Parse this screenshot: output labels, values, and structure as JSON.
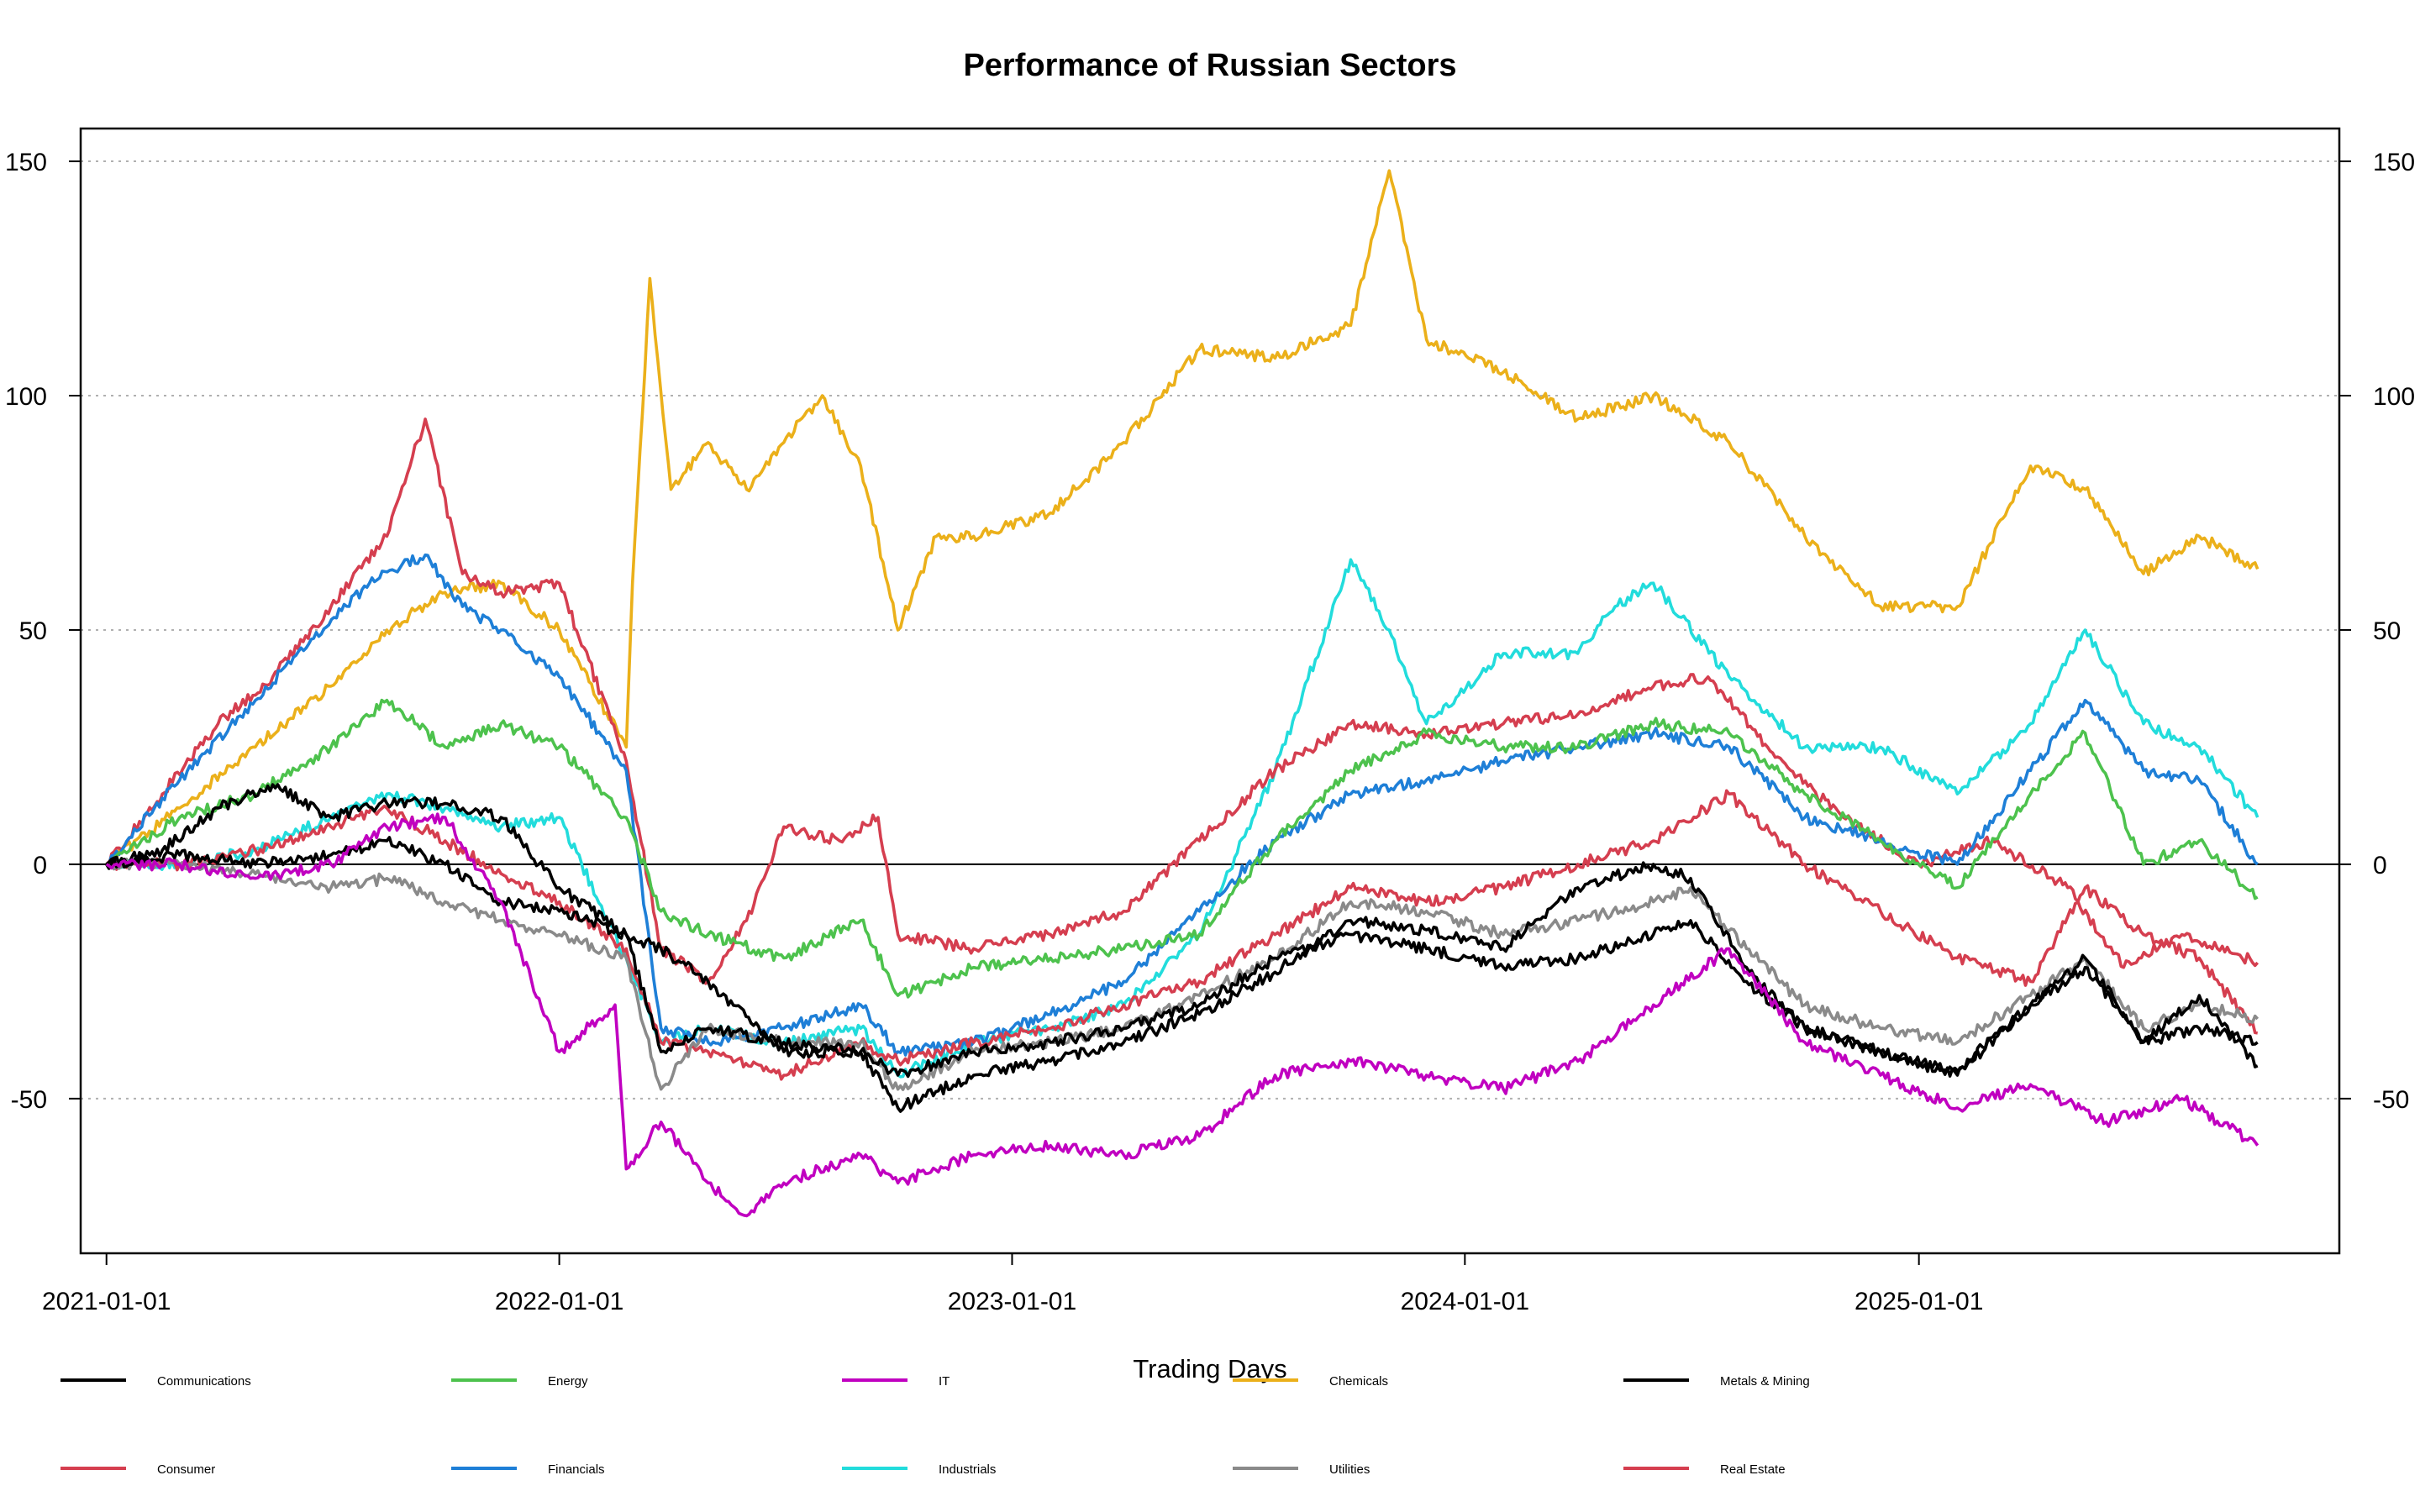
{
  "chart_data": {
    "type": "line",
    "title": "Performance of Russian Sectors",
    "xlabel": "Trading Days",
    "ylabel": "",
    "x_ticks": [
      "2021-01-01",
      "2022-01-01",
      "2023-01-01",
      "2024-01-01",
      "2025-01-01"
    ],
    "x_range": [
      "2021-01-01",
      "2025-10-01"
    ],
    "y_ticks": [
      -50,
      0,
      50,
      100,
      150
    ],
    "ylim": [
      -83,
      157
    ],
    "grid": "horizontal dotted",
    "reference_line": 0,
    "legend_position": "bottom",
    "series": [
      {
        "name": "Communications",
        "color": "#000000",
        "x": [
          "2021-01-01",
          "2021-02-15",
          "2021-04-01",
          "2021-05-15",
          "2021-07-01",
          "2021-08-15",
          "2021-10-01",
          "2021-11-15",
          "2022-01-01",
          "2022-02-24",
          "2022-03-24",
          "2022-05-01",
          "2022-07-01",
          "2022-09-01",
          "2022-10-01",
          "2022-12-01",
          "2023-02-01",
          "2023-04-01",
          "2023-06-01",
          "2023-08-01",
          "2023-10-01",
          "2023-12-01",
          "2024-02-01",
          "2024-04-01",
          "2024-06-01",
          "2024-07-01",
          "2024-08-15",
          "2024-10-01",
          "2024-12-01",
          "2025-02-01",
          "2025-04-01",
          "2025-05-15",
          "2025-07-01",
          "2025-08-15",
          "2025-10-01"
        ],
        "values": [
          0,
          3,
          12,
          17,
          10,
          13,
          13,
          10,
          -5,
          -15,
          -18,
          -25,
          -40,
          -40,
          -52,
          -45,
          -42,
          -38,
          -32,
          -23,
          -12,
          -14,
          -18,
          -5,
          0,
          -3,
          -22,
          -35,
          -40,
          -44,
          -30,
          -20,
          -38,
          -28,
          -43
        ]
      },
      {
        "name": "Consumer",
        "color": "#D53E4F",
        "x": [
          "2021-01-01",
          "2021-02-15",
          "2021-04-01",
          "2021-05-15",
          "2021-07-01",
          "2021-08-15",
          "2021-09-15",
          "2021-10-15",
          "2021-11-15",
          "2022-01-01",
          "2022-02-24",
          "2022-03-24",
          "2022-05-01",
          "2022-06-01",
          "2022-07-01",
          "2022-08-15",
          "2022-09-15",
          "2022-10-01",
          "2022-12-01",
          "2023-02-01",
          "2023-04-01",
          "2023-06-01",
          "2023-08-01",
          "2023-10-01",
          "2023-12-01",
          "2024-02-01",
          "2024-04-01",
          "2024-06-01",
          "2024-07-15",
          "2024-09-01",
          "2024-11-01",
          "2025-01-01",
          "2025-03-01",
          "2025-05-01",
          "2025-06-15",
          "2025-08-01",
          "2025-10-01"
        ],
        "values": [
          0,
          15,
          30,
          40,
          55,
          70,
          95,
          62,
          58,
          60,
          22,
          -18,
          -25,
          -12,
          8,
          5,
          10,
          -15,
          -18,
          -15,
          -10,
          5,
          20,
          30,
          28,
          30,
          32,
          38,
          40,
          25,
          10,
          0,
          5,
          -5,
          -22,
          -15,
          -21
        ]
      },
      {
        "name": "Energy",
        "color": "#4DC24D",
        "x": [
          "2021-01-01",
          "2021-03-01",
          "2021-05-01",
          "2021-07-01",
          "2021-08-15",
          "2021-10-01",
          "2021-11-15",
          "2022-01-01",
          "2022-02-24",
          "2022-03-24",
          "2022-05-01",
          "2022-07-01",
          "2022-09-01",
          "2022-10-01",
          "2022-12-01",
          "2023-02-01",
          "2023-04-01",
          "2023-06-01",
          "2023-08-01",
          "2023-10-01",
          "2023-12-01",
          "2024-02-01",
          "2024-04-01",
          "2024-06-01",
          "2024-08-01",
          "2024-10-01",
          "2024-12-01",
          "2025-02-01",
          "2025-04-01",
          "2025-05-15",
          "2025-07-01",
          "2025-08-15",
          "2025-10-01"
        ],
        "values": [
          0,
          10,
          15,
          25,
          35,
          25,
          30,
          25,
          10,
          -10,
          -15,
          -20,
          -12,
          -28,
          -22,
          -20,
          -18,
          -15,
          5,
          20,
          28,
          25,
          25,
          30,
          28,
          15,
          5,
          -5,
          15,
          28,
          0,
          5,
          -7
        ]
      },
      {
        "name": "Financials",
        "color": "#1E7FD7",
        "x": [
          "2021-01-01",
          "2021-03-01",
          "2021-05-01",
          "2021-06-15",
          "2021-08-01",
          "2021-09-15",
          "2021-10-15",
          "2021-11-15",
          "2022-01-01",
          "2022-02-24",
          "2022-03-24",
          "2022-05-01",
          "2022-07-01",
          "2022-09-01",
          "2022-10-01",
          "2022-12-01",
          "2023-02-01",
          "2023-04-01",
          "2023-06-01",
          "2023-08-01",
          "2023-10-01",
          "2023-12-01",
          "2024-02-01",
          "2024-04-01",
          "2024-06-01",
          "2024-08-01",
          "2024-10-01",
          "2024-12-01",
          "2025-02-01",
          "2025-04-01",
          "2025-05-15",
          "2025-07-01",
          "2025-08-15",
          "2025-10-01"
        ],
        "values": [
          0,
          18,
          35,
          48,
          60,
          66,
          55,
          50,
          40,
          20,
          -35,
          -38,
          -35,
          -30,
          -40,
          -38,
          -32,
          -25,
          -10,
          5,
          15,
          18,
          22,
          25,
          28,
          25,
          10,
          5,
          0,
          20,
          35,
          20,
          18,
          0
        ]
      },
      {
        "name": "IT",
        "color": "#C000C0",
        "x": [
          "2021-01-01",
          "2021-03-01",
          "2021-05-01",
          "2021-07-01",
          "2021-08-15",
          "2021-10-01",
          "2021-11-15",
          "2022-01-01",
          "2022-02-15",
          "2022-02-24",
          "2022-03-24",
          "2022-05-01",
          "2022-06-01",
          "2022-07-01",
          "2022-09-01",
          "2022-10-01",
          "2022-12-01",
          "2023-02-01",
          "2023-04-01",
          "2023-06-01",
          "2023-08-01",
          "2023-10-01",
          "2023-12-01",
          "2024-02-01",
          "2024-04-01",
          "2024-06-01",
          "2024-08-01",
          "2024-10-01",
          "2024-12-01",
          "2025-02-01",
          "2025-04-01",
          "2025-06-01",
          "2025-08-01",
          "2025-10-01"
        ],
        "values": [
          0,
          0,
          -3,
          0,
          8,
          10,
          -8,
          -40,
          -30,
          -65,
          -55,
          -68,
          -75,
          -68,
          -62,
          -68,
          -62,
          -60,
          -62,
          -58,
          -45,
          -42,
          -45,
          -48,
          -42,
          -30,
          -18,
          -38,
          -45,
          -52,
          -47,
          -55,
          -50,
          -60
        ]
      },
      {
        "name": "Industrials",
        "color": "#22DCDC",
        "x": [
          "2021-01-01",
          "2021-03-01",
          "2021-05-01",
          "2021-07-01",
          "2021-08-15",
          "2021-10-01",
          "2021-11-15",
          "2022-01-01",
          "2022-02-24",
          "2022-03-24",
          "2022-05-01",
          "2022-07-01",
          "2022-09-01",
          "2022-10-01",
          "2022-12-01",
          "2023-02-01",
          "2023-04-01",
          "2023-06-01",
          "2023-08-01",
          "2023-10-01",
          "2023-11-01",
          "2023-12-01",
          "2024-02-01",
          "2024-04-01",
          "2024-05-01",
          "2024-06-01",
          "2024-08-01",
          "2024-10-01",
          "2024-12-01",
          "2025-02-01",
          "2025-04-01",
          "2025-05-15",
          "2025-07-01",
          "2025-08-15",
          "2025-10-01"
        ],
        "values": [
          0,
          0,
          3,
          10,
          15,
          12,
          8,
          10,
          -20,
          -38,
          -35,
          -38,
          -35,
          -45,
          -38,
          -35,
          -30,
          -15,
          20,
          65,
          50,
          30,
          45,
          45,
          55,
          60,
          40,
          25,
          25,
          15,
          30,
          50,
          30,
          25,
          10
        ]
      },
      {
        "name": "Chemicals",
        "color": "#EBB01A",
        "x": [
          "2021-01-01",
          "2021-03-01",
          "2021-05-01",
          "2021-07-01",
          "2021-08-15",
          "2021-10-01",
          "2021-11-15",
          "2022-01-01",
          "2022-02-24",
          "2022-03-01",
          "2022-03-15",
          "2022-04-01",
          "2022-05-01",
          "2022-06-01",
          "2022-07-01",
          "2022-08-01",
          "2022-09-01",
          "2022-10-01",
          "2022-11-01",
          "2022-12-01",
          "2023-02-01",
          "2023-04-01",
          "2023-06-01",
          "2023-08-01",
          "2023-10-01",
          "2023-11-01",
          "2023-12-01",
          "2024-02-01",
          "2024-04-01",
          "2024-06-01",
          "2024-08-01",
          "2024-10-01",
          "2024-12-01",
          "2025-02-01",
          "2025-04-01",
          "2025-05-15",
          "2025-07-01",
          "2025-08-15",
          "2025-10-01"
        ],
        "values": [
          0,
          12,
          25,
          38,
          50,
          58,
          60,
          50,
          25,
          60,
          125,
          80,
          90,
          80,
          90,
          100,
          85,
          50,
          70,
          70,
          75,
          90,
          110,
          108,
          115,
          148,
          112,
          105,
          95,
          100,
          90,
          70,
          55,
          55,
          85,
          80,
          62,
          70,
          63
        ]
      },
      {
        "name": "Utilities",
        "color": "#8A8A8A",
        "x": [
          "2021-01-01",
          "2021-03-01",
          "2021-05-01",
          "2021-07-01",
          "2021-08-15",
          "2021-10-01",
          "2021-11-15",
          "2022-01-01",
          "2022-02-24",
          "2022-03-24",
          "2022-05-01",
          "2022-07-01",
          "2022-09-01",
          "2022-10-01",
          "2022-12-01",
          "2023-02-01",
          "2023-04-01",
          "2023-06-01",
          "2023-08-01",
          "2023-10-01",
          "2023-12-01",
          "2024-02-01",
          "2024-04-01",
          "2024-06-01",
          "2024-07-01",
          "2024-08-15",
          "2024-10-01",
          "2024-12-01",
          "2025-02-01",
          "2025-04-01",
          "2025-05-15",
          "2025-07-01",
          "2025-08-15",
          "2025-10-01"
        ],
        "values": [
          0,
          0,
          -2,
          -5,
          -3,
          -8,
          -12,
          -15,
          -20,
          -48,
          -35,
          -38,
          -38,
          -48,
          -40,
          -38,
          -35,
          -28,
          -20,
          -8,
          -10,
          -15,
          -12,
          -8,
          -5,
          -18,
          -30,
          -35,
          -38,
          -28,
          -20,
          -35,
          -30,
          -33
        ]
      },
      {
        "name": "Metals & Mining",
        "color": "#000000",
        "x": [
          "2021-01-01",
          "2021-03-01",
          "2021-05-01",
          "2021-07-01",
          "2021-08-15",
          "2021-10-01",
          "2021-11-15",
          "2022-01-01",
          "2022-02-24",
          "2022-03-24",
          "2022-05-01",
          "2022-07-01",
          "2022-09-01",
          "2022-10-01",
          "2022-12-01",
          "2023-02-01",
          "2023-04-01",
          "2023-06-01",
          "2023-08-01",
          "2023-10-01",
          "2023-12-01",
          "2024-02-01",
          "2024-04-01",
          "2024-06-01",
          "2024-07-01",
          "2024-08-15",
          "2024-10-01",
          "2024-12-01",
          "2025-02-01",
          "2025-04-01",
          "2025-05-15",
          "2025-07-01",
          "2025-08-15",
          "2025-10-01"
        ],
        "values": [
          0,
          2,
          0,
          2,
          5,
          0,
          -8,
          -10,
          -15,
          -40,
          -35,
          -38,
          -40,
          -45,
          -40,
          -38,
          -35,
          -30,
          -20,
          -15,
          -18,
          -22,
          -20,
          -15,
          -12,
          -25,
          -35,
          -40,
          -45,
          -30,
          -22,
          -38,
          -35,
          -38
        ]
      },
      {
        "name": "Real Estate",
        "color": "#D53E4F",
        "x": [
          "2021-01-01",
          "2021-03-01",
          "2021-05-01",
          "2021-07-01",
          "2021-08-15",
          "2021-10-01",
          "2021-11-15",
          "2022-01-01",
          "2022-02-24",
          "2022-03-24",
          "2022-05-01",
          "2022-07-01",
          "2022-09-01",
          "2022-10-01",
          "2022-12-01",
          "2023-02-01",
          "2023-04-01",
          "2023-06-01",
          "2023-08-01",
          "2023-10-01",
          "2023-12-01",
          "2024-02-01",
          "2024-04-01",
          "2024-06-01",
          "2024-08-01",
          "2024-10-01",
          "2024-12-01",
          "2025-02-01",
          "2025-04-01",
          "2025-05-15",
          "2025-07-01",
          "2025-08-15",
          "2025-10-01"
        ],
        "values": [
          0,
          0,
          3,
          8,
          12,
          5,
          -2,
          -8,
          -18,
          -38,
          -40,
          -45,
          -38,
          -42,
          -38,
          -35,
          -30,
          -25,
          -15,
          -5,
          -8,
          -5,
          0,
          5,
          15,
          0,
          -10,
          -20,
          -25,
          -5,
          -15,
          -20,
          -36
        ]
      }
    ]
  }
}
